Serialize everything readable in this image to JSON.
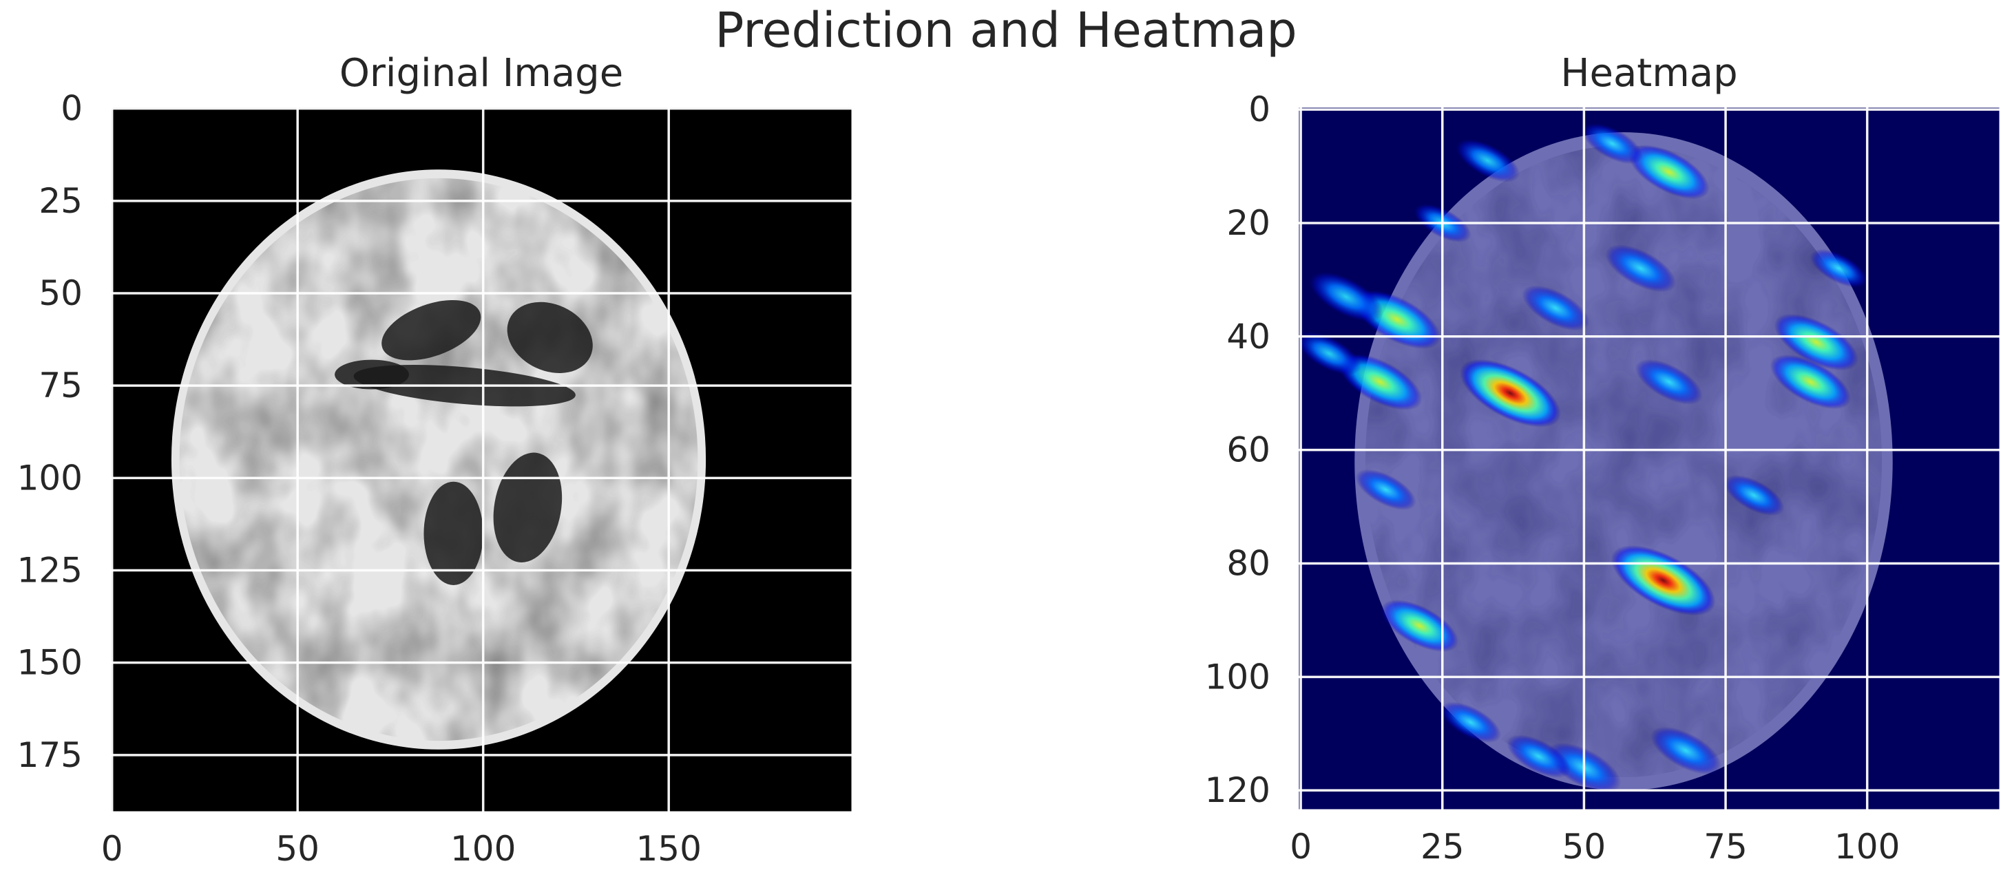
{
  "chart_data": {
    "title": "Prediction and Heatmap",
    "panels": [
      {
        "type": "heatmap",
        "title": "Original Image",
        "image": "grayscale brain MRI axial slice",
        "colormap": "gray",
        "xlim": [
          -0.5,
          199.5
        ],
        "ylim": [
          190.5,
          -0.5
        ],
        "xticks": [
          0,
          50,
          100,
          150
        ],
        "yticks": [
          0,
          25,
          50,
          75,
          100,
          125,
          150,
          175
        ],
        "xtick_labels": [
          "0",
          "50",
          "100",
          "150"
        ],
        "ytick_labels": [
          "0",
          "25",
          "50",
          "75",
          "100",
          "125",
          "150",
          "175"
        ],
        "grid": true
      },
      {
        "type": "heatmap",
        "title": "Heatmap",
        "image": "brain MRI overlaid with jet-colormap activation heatmap",
        "colormap": "jet",
        "xlim": [
          -0.5,
          123.5
        ],
        "ylim": [
          123.5,
          -0.5
        ],
        "xticks": [
          0,
          25,
          50,
          75,
          100
        ],
        "yticks": [
          0,
          20,
          40,
          60,
          80,
          100,
          120
        ],
        "xtick_labels": [
          "0",
          "25",
          "50",
          "75",
          "100"
        ],
        "ytick_labels": [
          "0",
          "20",
          "40",
          "60",
          "80",
          "100",
          "120"
        ],
        "grid": true,
        "hotspots": [
          {
            "x": 64,
            "y": 83,
            "intensity": 1.0
          },
          {
            "x": 37,
            "y": 50,
            "intensity": 0.95
          },
          {
            "x": 17,
            "y": 37,
            "intensity": 0.75
          },
          {
            "x": 14,
            "y": 48,
            "intensity": 0.7
          },
          {
            "x": 91,
            "y": 41,
            "intensity": 0.7
          },
          {
            "x": 90,
            "y": 48,
            "intensity": 0.65
          },
          {
            "x": 65,
            "y": 11,
            "intensity": 0.65
          },
          {
            "x": 21,
            "y": 91,
            "intensity": 0.6
          },
          {
            "x": 50,
            "y": 116,
            "intensity": 0.55
          },
          {
            "x": 68,
            "y": 113,
            "intensity": 0.5
          },
          {
            "x": 8,
            "y": 33,
            "intensity": 0.55
          },
          {
            "x": 60,
            "y": 28,
            "intensity": 0.5
          },
          {
            "x": 65,
            "y": 48,
            "intensity": 0.45
          },
          {
            "x": 33,
            "y": 9,
            "intensity": 0.4
          },
          {
            "x": 45,
            "y": 35,
            "intensity": 0.45
          },
          {
            "x": 5,
            "y": 43,
            "intensity": 0.4
          },
          {
            "x": 42,
            "y": 114,
            "intensity": 0.4
          },
          {
            "x": 30,
            "y": 108,
            "intensity": 0.35
          },
          {
            "x": 15,
            "y": 67,
            "intensity": 0.35
          },
          {
            "x": 55,
            "y": 6,
            "intensity": 0.35
          },
          {
            "x": 80,
            "y": 68,
            "intensity": 0.35
          },
          {
            "x": 25,
            "y": 20,
            "intensity": 0.3
          },
          {
            "x": 95,
            "y": 28,
            "intensity": 0.3
          }
        ]
      }
    ]
  },
  "colors": {
    "title_text": "#262626",
    "grid": "#ffffff",
    "original_background": "#000000",
    "heatmap_background": "#00005c",
    "heatmap_brain": "#6e6eb4"
  }
}
